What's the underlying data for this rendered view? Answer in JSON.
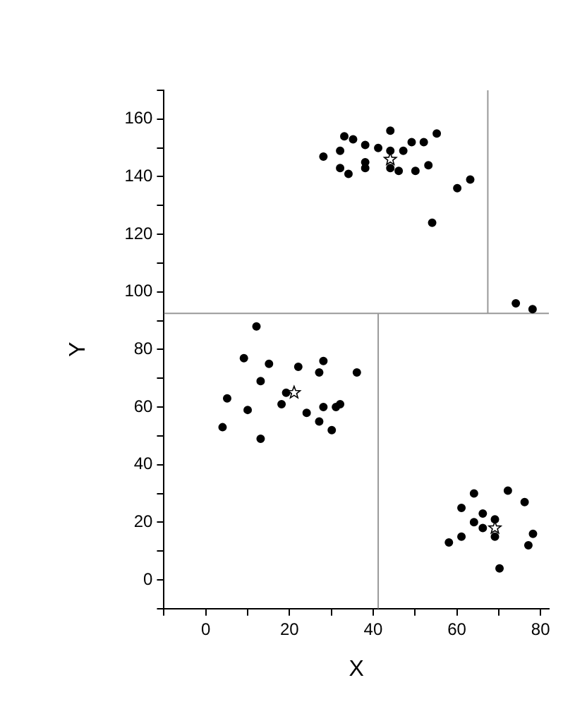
{
  "chart_data": {
    "type": "scatter",
    "xlabel": "X",
    "ylabel": "Y",
    "xlim": [
      -10,
      82
    ],
    "ylim": [
      -10,
      170
    ],
    "xticks": [
      {
        "value": -10,
        "label": null
      },
      0,
      {
        "value": 10,
        "label": null
      },
      20,
      {
        "value": 30,
        "label": null
      },
      40,
      {
        "value": 50,
        "label": null
      },
      60,
      {
        "value": 70,
        "label": null
      },
      80
    ],
    "yticks": [
      {
        "value": -10,
        "label": null
      },
      0,
      {
        "value": 10,
        "label": null
      },
      20,
      {
        "value": 30,
        "label": null
      },
      40,
      {
        "value": 50,
        "label": null
      },
      60,
      {
        "value": 70,
        "label": null
      },
      80,
      {
        "value": 90,
        "label": null
      },
      100,
      {
        "value": 110,
        "label": null
      },
      120,
      {
        "value": 130,
        "label": null
      },
      140,
      {
        "value": 150,
        "label": null
      },
      160,
      {
        "value": 170,
        "label": null
      }
    ],
    "grid": false,
    "legend": false,
    "series": [
      {
        "type": "scatter",
        "marker": "circle",
        "color": "#000000",
        "x": [
          28.1,
          32.1,
          32.1,
          33.1,
          34.1,
          35.2,
          38.1,
          38.1,
          38.1,
          41.2,
          44.1,
          44.1,
          44.1,
          46.1,
          47.2,
          49.2,
          50.1,
          52.1,
          53.2,
          55.2,
          54.1,
          60.1,
          63.2,
          74.1,
          78.1,
          12.1,
          9.1,
          15.1,
          22.1,
          28.1,
          27.1,
          36.1,
          13.1,
          5.1,
          19.2,
          18.1,
          10.0,
          24.1,
          28.1,
          31.1,
          32.1,
          27.1,
          30.1,
          4.0,
          13.1,
          64.1,
          72.2,
          76.2,
          61.1,
          66.2,
          69.1,
          64.1,
          66.2,
          69.1,
          61.1,
          58.1,
          78.2,
          77.1,
          70.2
        ],
        "values": [
          147,
          149,
          143,
          154,
          141,
          153,
          151,
          145,
          143,
          150,
          156,
          149,
          143,
          142,
          149,
          152,
          142,
          152,
          144,
          155,
          124,
          136,
          139,
          96,
          94,
          88,
          77,
          75,
          74,
          76,
          72,
          72,
          69,
          63,
          65,
          61,
          59,
          58,
          60,
          60,
          61,
          55,
          52,
          53,
          49,
          30,
          31,
          27,
          25,
          23,
          21,
          20,
          18,
          15,
          15,
          13,
          16,
          12,
          4
        ]
      },
      {
        "type": "scatter",
        "marker": "star",
        "color": "#000000",
        "x": [
          44.1,
          21.1,
          69.1
        ],
        "values": [
          146,
          65,
          18
        ]
      },
      {
        "type": "line",
        "marker": "none",
        "color": "#999999",
        "x": [
          -10,
          82
        ],
        "values": [
          92.5,
          92.5
        ]
      },
      {
        "type": "line",
        "marker": "none",
        "color": "#999999",
        "x": [
          67.4,
          67.4
        ],
        "values": [
          92.5,
          170
        ]
      },
      {
        "type": "line",
        "marker": "none",
        "color": "#999999",
        "x": [
          41.2,
          41.2
        ],
        "values": [
          -10,
          92.5
        ]
      }
    ]
  }
}
